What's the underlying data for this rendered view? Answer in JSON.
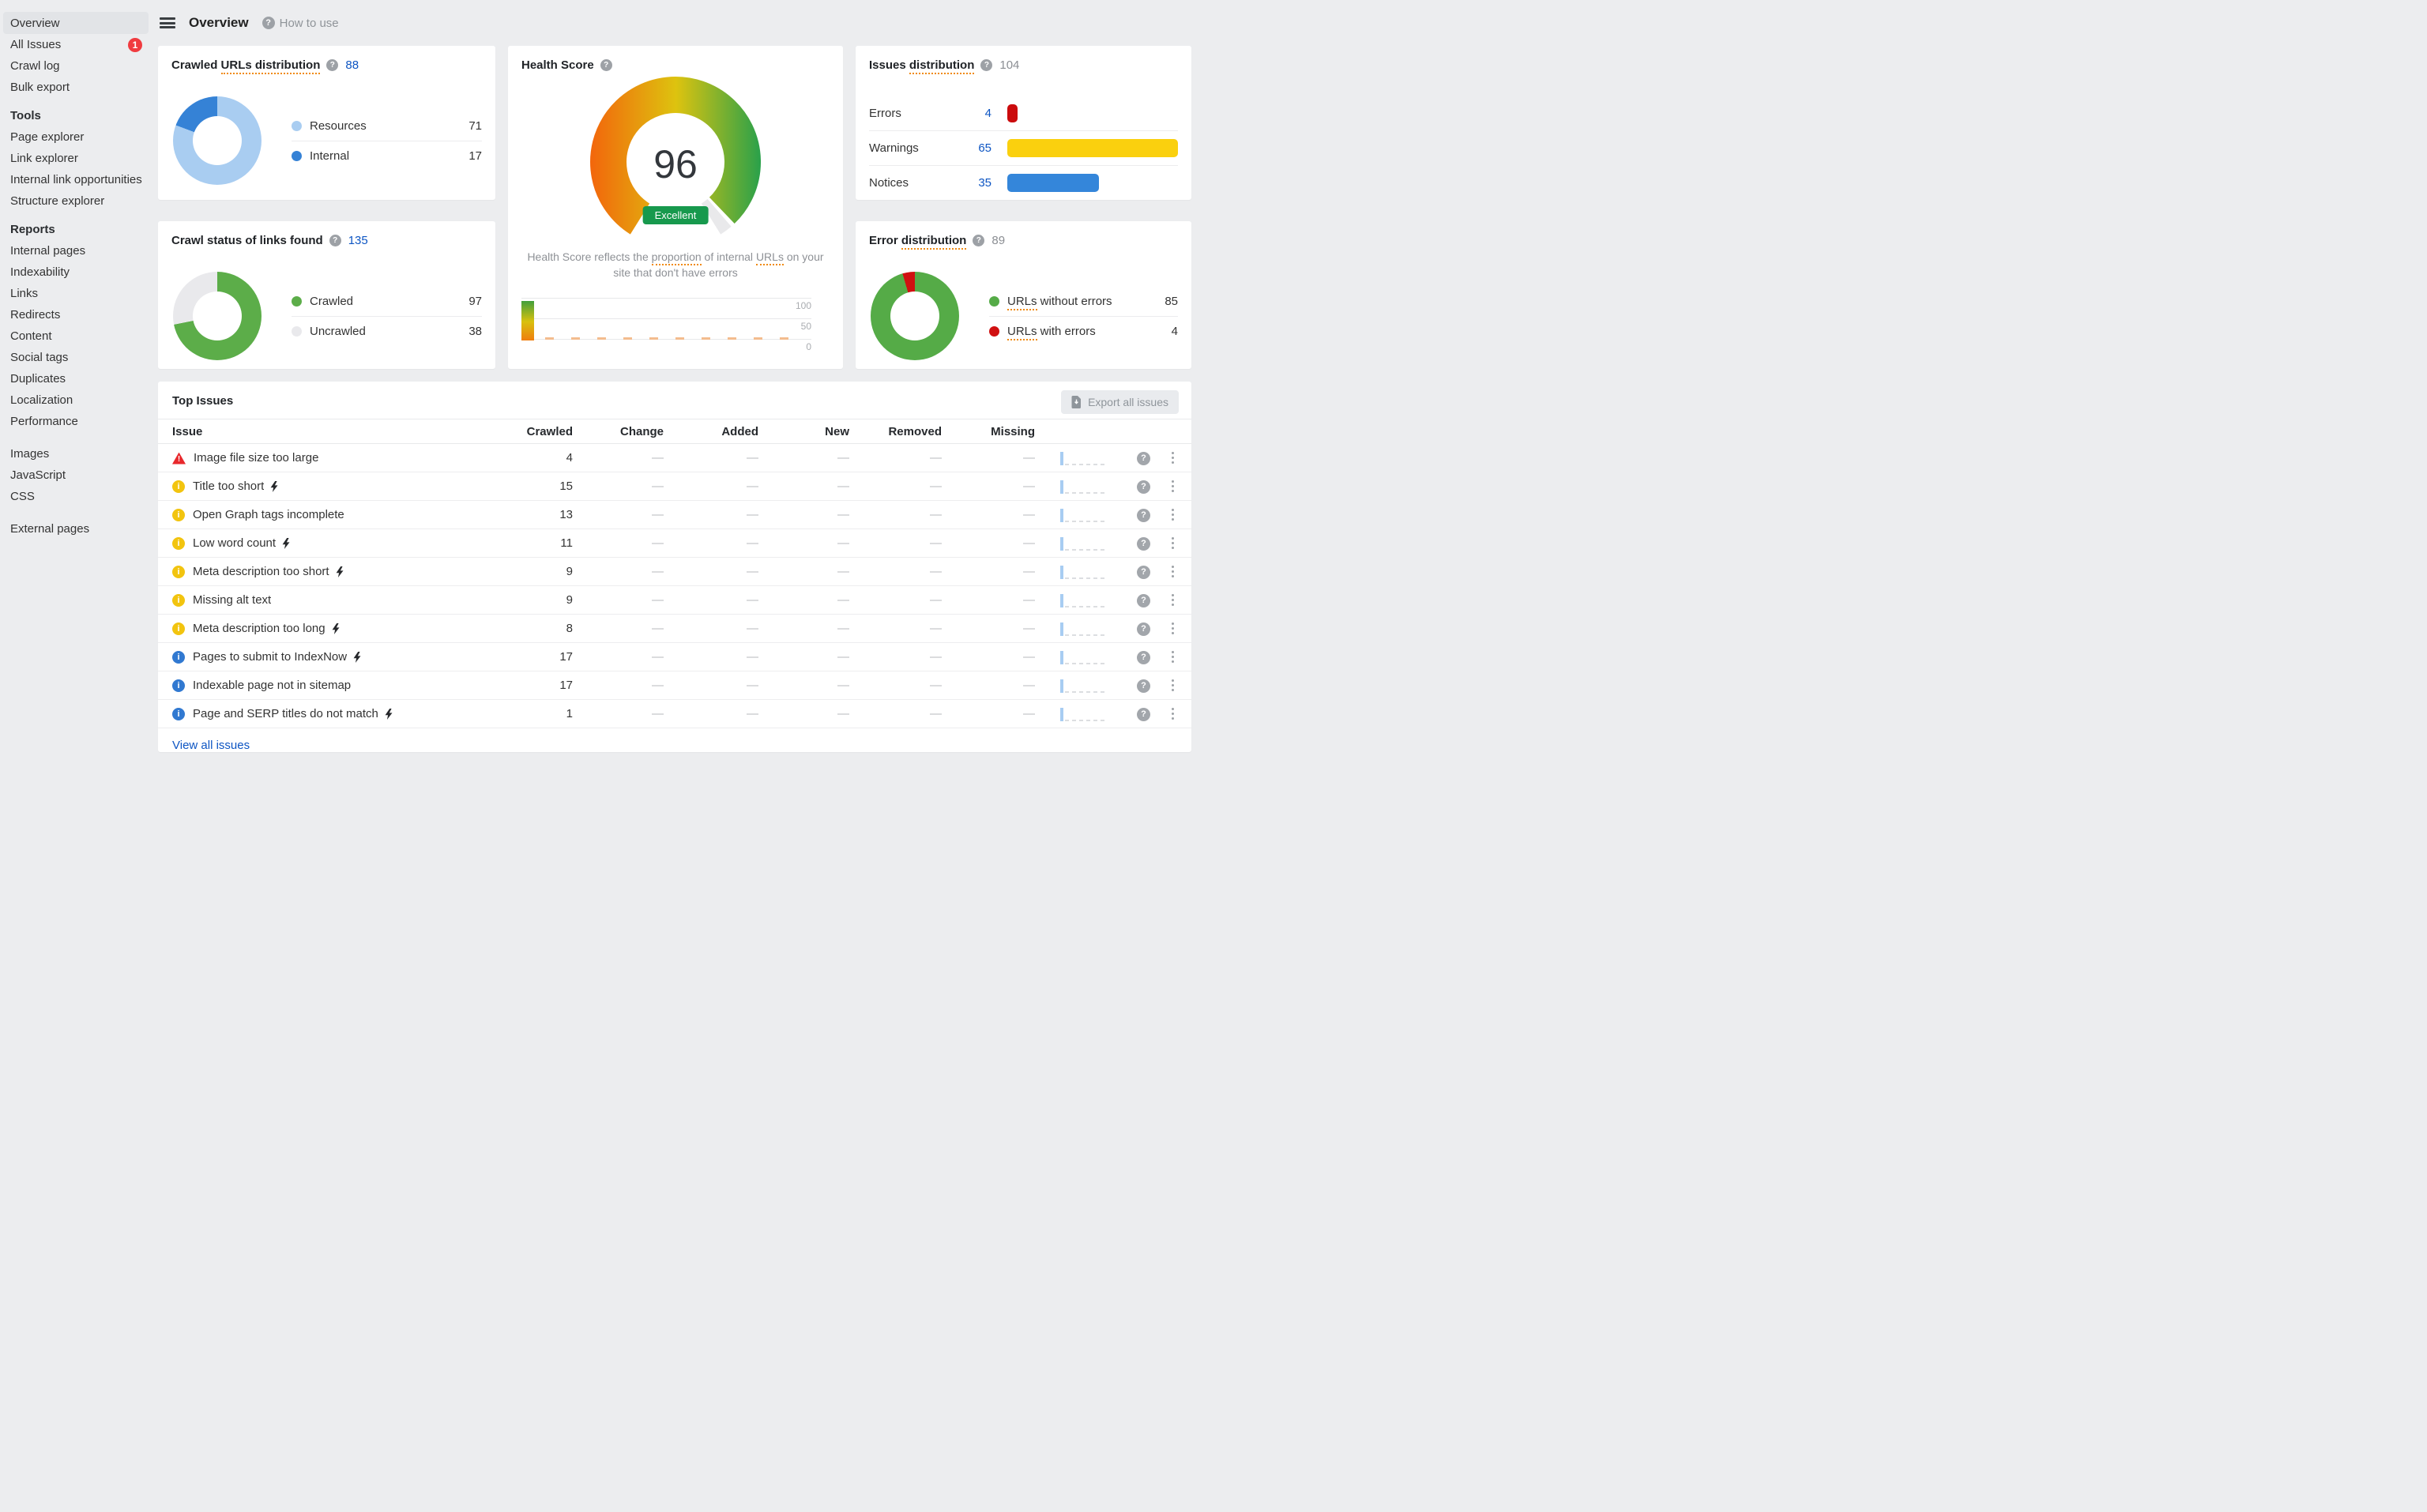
{
  "header": {
    "title": "Overview",
    "help_label": "How to use"
  },
  "sidebar": {
    "items": [
      {
        "type": "item",
        "label": "Overview",
        "selected": true
      },
      {
        "type": "item",
        "label": "All Issues",
        "badge": "1"
      },
      {
        "type": "item",
        "label": "Crawl log"
      },
      {
        "type": "item",
        "label": "Bulk export"
      },
      {
        "type": "heading",
        "label": "Tools"
      },
      {
        "type": "item",
        "label": "Page explorer"
      },
      {
        "type": "item",
        "label": "Link explorer"
      },
      {
        "type": "item",
        "label": "Internal link opportunities"
      },
      {
        "type": "item",
        "label": "Structure explorer"
      },
      {
        "type": "heading",
        "label": "Reports"
      },
      {
        "type": "item",
        "label": "Internal pages"
      },
      {
        "type": "item",
        "label": "Indexability"
      },
      {
        "type": "item",
        "label": "Links"
      },
      {
        "type": "item",
        "label": "Redirects"
      },
      {
        "type": "item",
        "label": "Content"
      },
      {
        "type": "item",
        "label": "Social tags"
      },
      {
        "type": "item",
        "label": "Duplicates"
      },
      {
        "type": "item",
        "label": "Localization"
      },
      {
        "type": "item",
        "label": "Performance"
      },
      {
        "type": "spacer"
      },
      {
        "type": "item",
        "label": "Images"
      },
      {
        "type": "item",
        "label": "JavaScript"
      },
      {
        "type": "item",
        "label": "CSS"
      },
      {
        "type": "spacer"
      },
      {
        "type": "item",
        "label": "External pages"
      }
    ]
  },
  "cards": {
    "crawled_urls": {
      "title_plain": "Crawled ",
      "title_dotted": "URLs distribution",
      "count": "88",
      "legend": [
        {
          "label": "Resources",
          "value": "71",
          "color": "#a9cdf1"
        },
        {
          "label": "Internal",
          "value": "17",
          "color": "#3582d6"
        }
      ]
    },
    "health": {
      "title": "Health Score",
      "score": "96",
      "badge": "Excellent",
      "desc_1": "Health Score reflects the ",
      "desc_u1": "proportion",
      "desc_2": " of internal ",
      "desc_u2": "URLs",
      "desc_3": " on your site that don't have errors",
      "yticks": {
        "y100": "100",
        "y50": "50",
        "y0": "0"
      }
    },
    "issues_dist": {
      "title_plain": "Issues ",
      "title_dotted": "distribution",
      "count": "104",
      "rows": [
        {
          "label": "Errors",
          "value": "4",
          "color": "#cb0b0d"
        },
        {
          "label": "Warnings",
          "value": "65",
          "color": "#fad00e"
        },
        {
          "label": "Notices",
          "value": "35",
          "color": "#3486da"
        }
      ]
    },
    "crawl_status": {
      "title": "Crawl status of links found",
      "count": "135",
      "legend": [
        {
          "label": "Crawled",
          "value": "97",
          "color": "#5cad49"
        },
        {
          "label": "Uncrawled",
          "value": "38",
          "color": "#e9e9ec"
        }
      ]
    },
    "error_dist": {
      "title_plain": "Error ",
      "title_dotted": "distribution",
      "count": "89",
      "legend": [
        {
          "label_dotted": "URLs",
          "label_rest": " without errors",
          "value": "85",
          "color": "#55ab47"
        },
        {
          "label_dotted": "URLs",
          "label_rest": " with errors",
          "value": "4",
          "color": "#d01011"
        }
      ]
    }
  },
  "top_issues": {
    "title": "Top Issues",
    "export_label": "Export all issues",
    "columns": [
      "Issue",
      "Crawled",
      "Change",
      "Added",
      "New",
      "Removed",
      "Missing"
    ],
    "placeholder": "—",
    "view_all": "View all issues",
    "rows": [
      {
        "severity": "error",
        "label": "Image file size too large",
        "bolt": false,
        "crawled": "4"
      },
      {
        "severity": "warning",
        "label": "Title too short",
        "bolt": true,
        "crawled": "15"
      },
      {
        "severity": "warning",
        "label": "Open Graph tags incomplete",
        "bolt": false,
        "crawled": "13"
      },
      {
        "severity": "warning",
        "label": "Low word count",
        "bolt": true,
        "crawled": "11"
      },
      {
        "severity": "warning",
        "label": "Meta description too short",
        "bolt": true,
        "crawled": "9"
      },
      {
        "severity": "warning",
        "label": "Missing alt text",
        "bolt": false,
        "crawled": "9"
      },
      {
        "severity": "warning",
        "label": "Meta description too long",
        "bolt": true,
        "crawled": "8"
      },
      {
        "severity": "notice",
        "label": "Pages to submit to IndexNow",
        "bolt": true,
        "crawled": "17"
      },
      {
        "severity": "notice",
        "label": "Indexable page not in sitemap",
        "bolt": false,
        "crawled": "17"
      },
      {
        "severity": "notice",
        "label": "Page and SERP titles do not match",
        "bolt": true,
        "crawled": "1"
      }
    ]
  },
  "colors": {
    "link_blue": "#0d55c3",
    "error_red": "#e8282c",
    "warning_yellow": "#f2c40f",
    "notice_blue": "#3179d1",
    "badge_green": "#17994d",
    "badge_red": "#f03b3f"
  }
}
